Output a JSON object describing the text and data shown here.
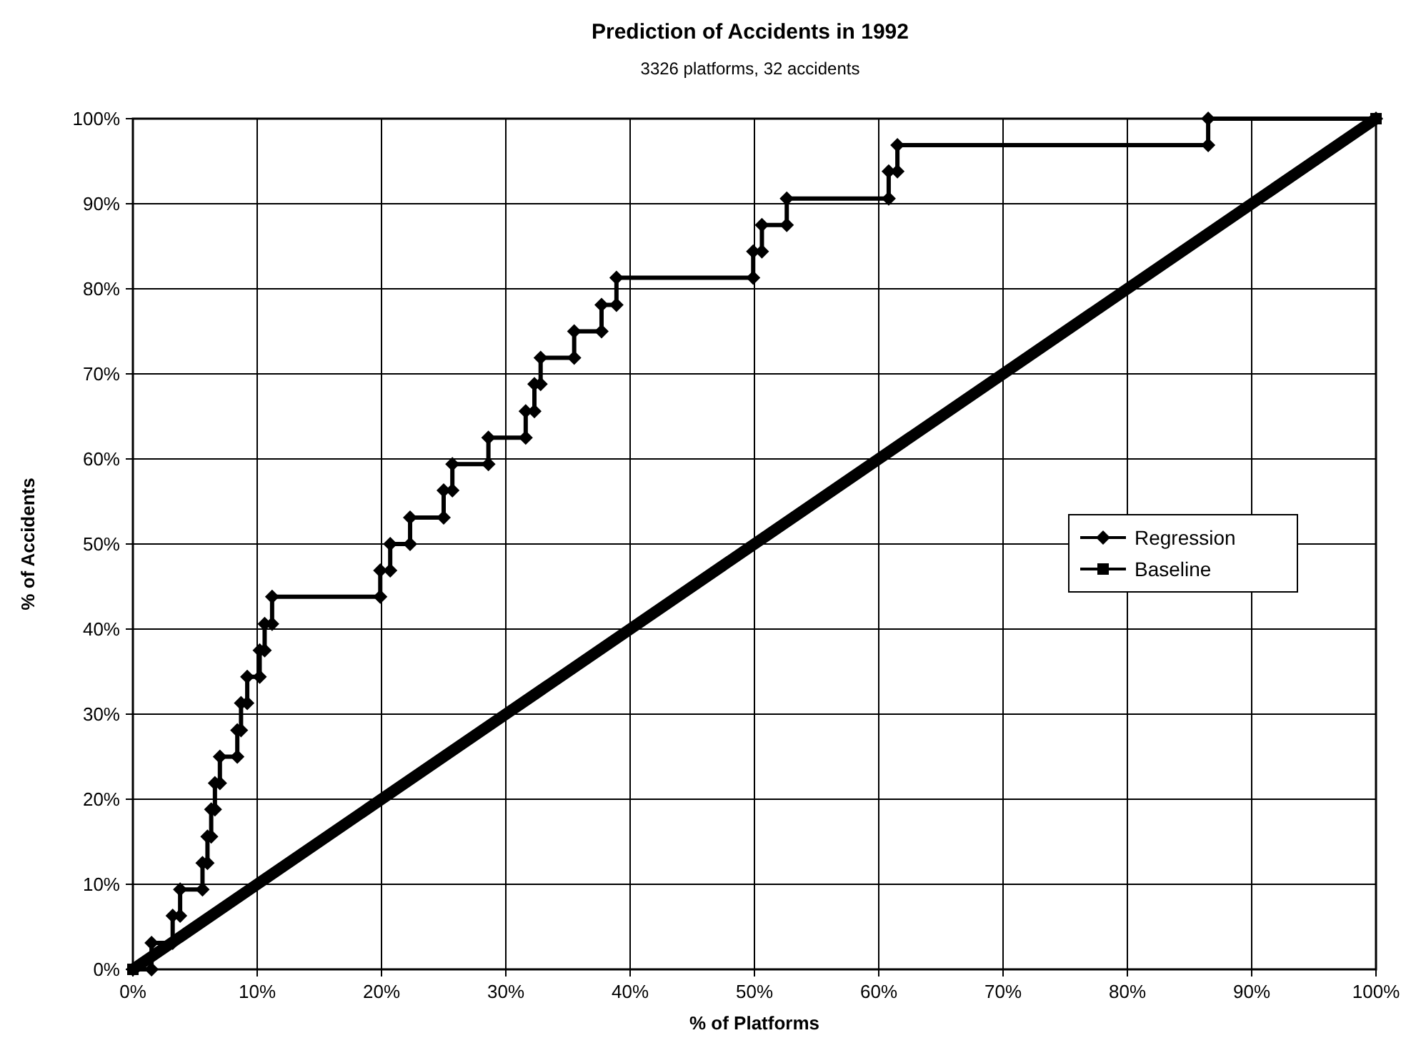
{
  "chart_data": {
    "type": "line",
    "title": "Prediction of Accidents in 1992",
    "subtitle": "3326 platforms, 32 accidents",
    "xlabel": "% of Platforms",
    "ylabel": "% of Accidents",
    "xlim": [
      0,
      100
    ],
    "ylim": [
      0,
      100
    ],
    "xticks": [
      {
        "value": 0,
        "label": "0%"
      },
      {
        "value": 10,
        "label": "10%"
      },
      {
        "value": 20,
        "label": "20%"
      },
      {
        "value": 30,
        "label": "30%"
      },
      {
        "value": 40,
        "label": "40%"
      },
      {
        "value": 50,
        "label": "50%"
      },
      {
        "value": 60,
        "label": "60%"
      },
      {
        "value": 70,
        "label": "70%"
      },
      {
        "value": 80,
        "label": "80%"
      },
      {
        "value": 90,
        "label": "90%"
      },
      {
        "value": 100,
        "label": "100%"
      }
    ],
    "yticks": [
      {
        "value": 0,
        "label": "0%"
      },
      {
        "value": 10,
        "label": "10%"
      },
      {
        "value": 20,
        "label": "20%"
      },
      {
        "value": 30,
        "label": "30%"
      },
      {
        "value": 40,
        "label": "40%"
      },
      {
        "value": 50,
        "label": "50%"
      },
      {
        "value": 60,
        "label": "60%"
      },
      {
        "value": 70,
        "label": "70%"
      },
      {
        "value": 80,
        "label": "80%"
      },
      {
        "value": 90,
        "label": "90%"
      },
      {
        "value": 100,
        "label": "100%"
      }
    ],
    "grid": true,
    "legend": "right",
    "line_style": "solid",
    "series": [
      {
        "name": "Regression",
        "color": "#000000",
        "marker": "diamond",
        "x": [
          0,
          1.5,
          1.5,
          3.2,
          3.2,
          3.8,
          3.8,
          5.6,
          5.6,
          6.0,
          6.0,
          6.3,
          6.3,
          6.6,
          6.6,
          7.0,
          7.0,
          8.4,
          8.4,
          8.7,
          8.7,
          9.2,
          9.2,
          10.2,
          10.2,
          10.6,
          10.6,
          11.2,
          11.2,
          19.9,
          19.9,
          20.7,
          20.7,
          22.3,
          22.3,
          25.0,
          25.0,
          25.7,
          25.7,
          28.6,
          28.6,
          31.6,
          31.6,
          32.3,
          32.3,
          32.8,
          32.8,
          35.5,
          35.5,
          37.7,
          37.7,
          38.9,
          38.9,
          49.9,
          49.9,
          50.6,
          50.6,
          52.6,
          52.6,
          60.8,
          60.8,
          61.5,
          61.5,
          86.5,
          86.5,
          100
        ],
        "values": [
          0,
          0,
          3.1,
          3.1,
          6.3,
          6.3,
          9.4,
          9.4,
          12.5,
          12.5,
          15.6,
          15.6,
          18.8,
          18.8,
          21.9,
          21.9,
          25,
          25,
          28.1,
          28.1,
          31.3,
          31.3,
          34.4,
          34.4,
          37.5,
          37.5,
          40.6,
          40.6,
          43.8,
          43.8,
          46.9,
          46.9,
          50,
          50,
          53.1,
          53.1,
          56.3,
          56.3,
          59.4,
          59.4,
          62.5,
          62.5,
          65.6,
          65.6,
          68.8,
          68.8,
          71.9,
          71.9,
          75,
          75,
          78.1,
          78.1,
          81.3,
          81.3,
          84.4,
          84.4,
          87.5,
          87.5,
          90.6,
          90.6,
          93.8,
          93.8,
          96.9,
          96.9,
          100,
          100
        ]
      },
      {
        "name": "Baseline",
        "color": "#000000",
        "marker": "square",
        "x": [
          0,
          100
        ],
        "values": [
          0,
          100
        ]
      }
    ]
  }
}
